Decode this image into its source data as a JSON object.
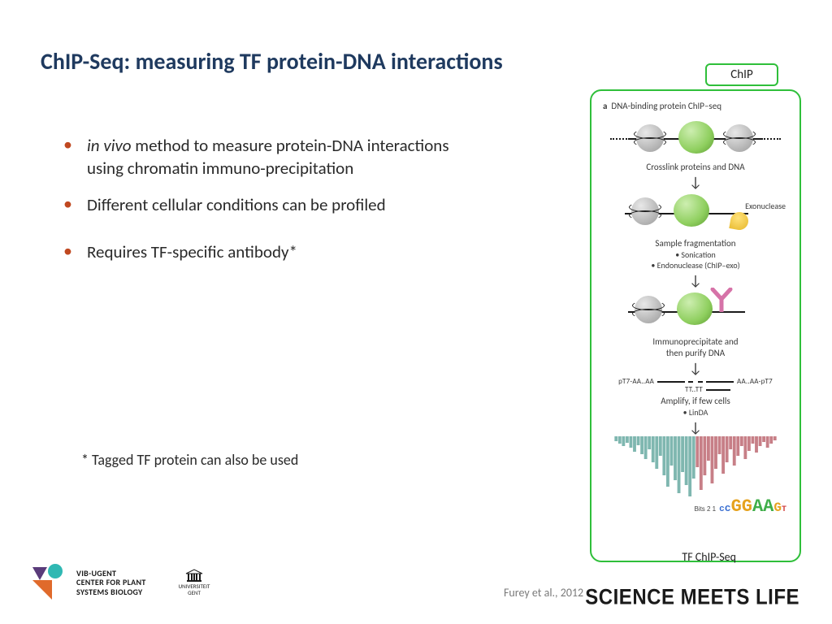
{
  "title": "ChIP-Seq: measuring TF protein-DNA interactions",
  "title_color": "#1f3a5f",
  "bullets": [
    {
      "text_html": "<span class='italic'>in vivo</span> method to measure protein-DNA interactions using chromatin immuno-precipitation",
      "gap": false
    },
    {
      "text_html": "Different cellular conditions can be profiled",
      "gap": false
    },
    {
      "text_html": "Requires TF-specific antibody*",
      "gap": true
    }
  ],
  "bullet_dot_color": "#c04820",
  "footnote": "* Tagged TF protein can also be used",
  "citation": "Furey et al., 2012",
  "tagline": "SCIENCE MEETS LIFE",
  "logo": {
    "vib_lines": [
      "VIB-UGENT",
      "CENTER FOR PLANT",
      "SYSTEMS BIOLOGY"
    ],
    "vib_colors": {
      "teal": "#2fb8b3",
      "orange": "#e06a2b",
      "purple": "#5a3b7a"
    },
    "ugent_label": "UNIVERSITEIT\nGENT"
  },
  "diagram": {
    "border_color": "#2fbf3a",
    "top_label": "ChIP",
    "header_prefix": "a",
    "header_text": "DNA-binding protein ChIP–seq",
    "steps": {
      "s1_caption": "Crosslink proteins and DNA",
      "s2_caption": "Sample fragmentation",
      "s2_sub1": "• Sonication",
      "s2_sub2": "• Endonuclease (ChIP–exo)",
      "s2_exo_label": "Exonuclease",
      "s3_caption": "Immunoprecipitate and\nthen purify DNA",
      "s4_left": "pT7-AA..AA",
      "s4_left2": "TT..TT",
      "s4_right": "AA..AA-pT7",
      "s4_caption": "Amplify, if few cells",
      "s4_sub": "• LinDA"
    },
    "peaks": {
      "color_left": "#7fb7b0",
      "color_right": "#c77f87",
      "bars": [
        6,
        9,
        12,
        8,
        14,
        19,
        11,
        22,
        28,
        16,
        32,
        40,
        24,
        48,
        62,
        36,
        54,
        70,
        44,
        60,
        74,
        52,
        38,
        66,
        48,
        30,
        58,
        40,
        22,
        46,
        32,
        16,
        36,
        24,
        12,
        28,
        18,
        9,
        20,
        12,
        7,
        14,
        9,
        5
      ]
    },
    "motif": {
      "letters": [
        {
          "ch": "c",
          "color": "#3a6fd1",
          "size": 11
        },
        {
          "ch": "c",
          "color": "#3a6fd1",
          "size": 13
        },
        {
          "ch": "G",
          "color": "#e6a21e",
          "size": 22
        },
        {
          "ch": "G",
          "color": "#e6a21e",
          "size": 22
        },
        {
          "ch": "A",
          "color": "#3fae49",
          "size": 22
        },
        {
          "ch": "A",
          "color": "#3fae49",
          "size": 22
        },
        {
          "ch": "G",
          "color": "#e6a21e",
          "size": 16
        },
        {
          "ch": "T",
          "color": "#d1403f",
          "size": 10
        }
      ],
      "bits_label": "Bits",
      "bits_ticks": "2\n1"
    },
    "bottom_label": "TF ChIP-Seq"
  }
}
